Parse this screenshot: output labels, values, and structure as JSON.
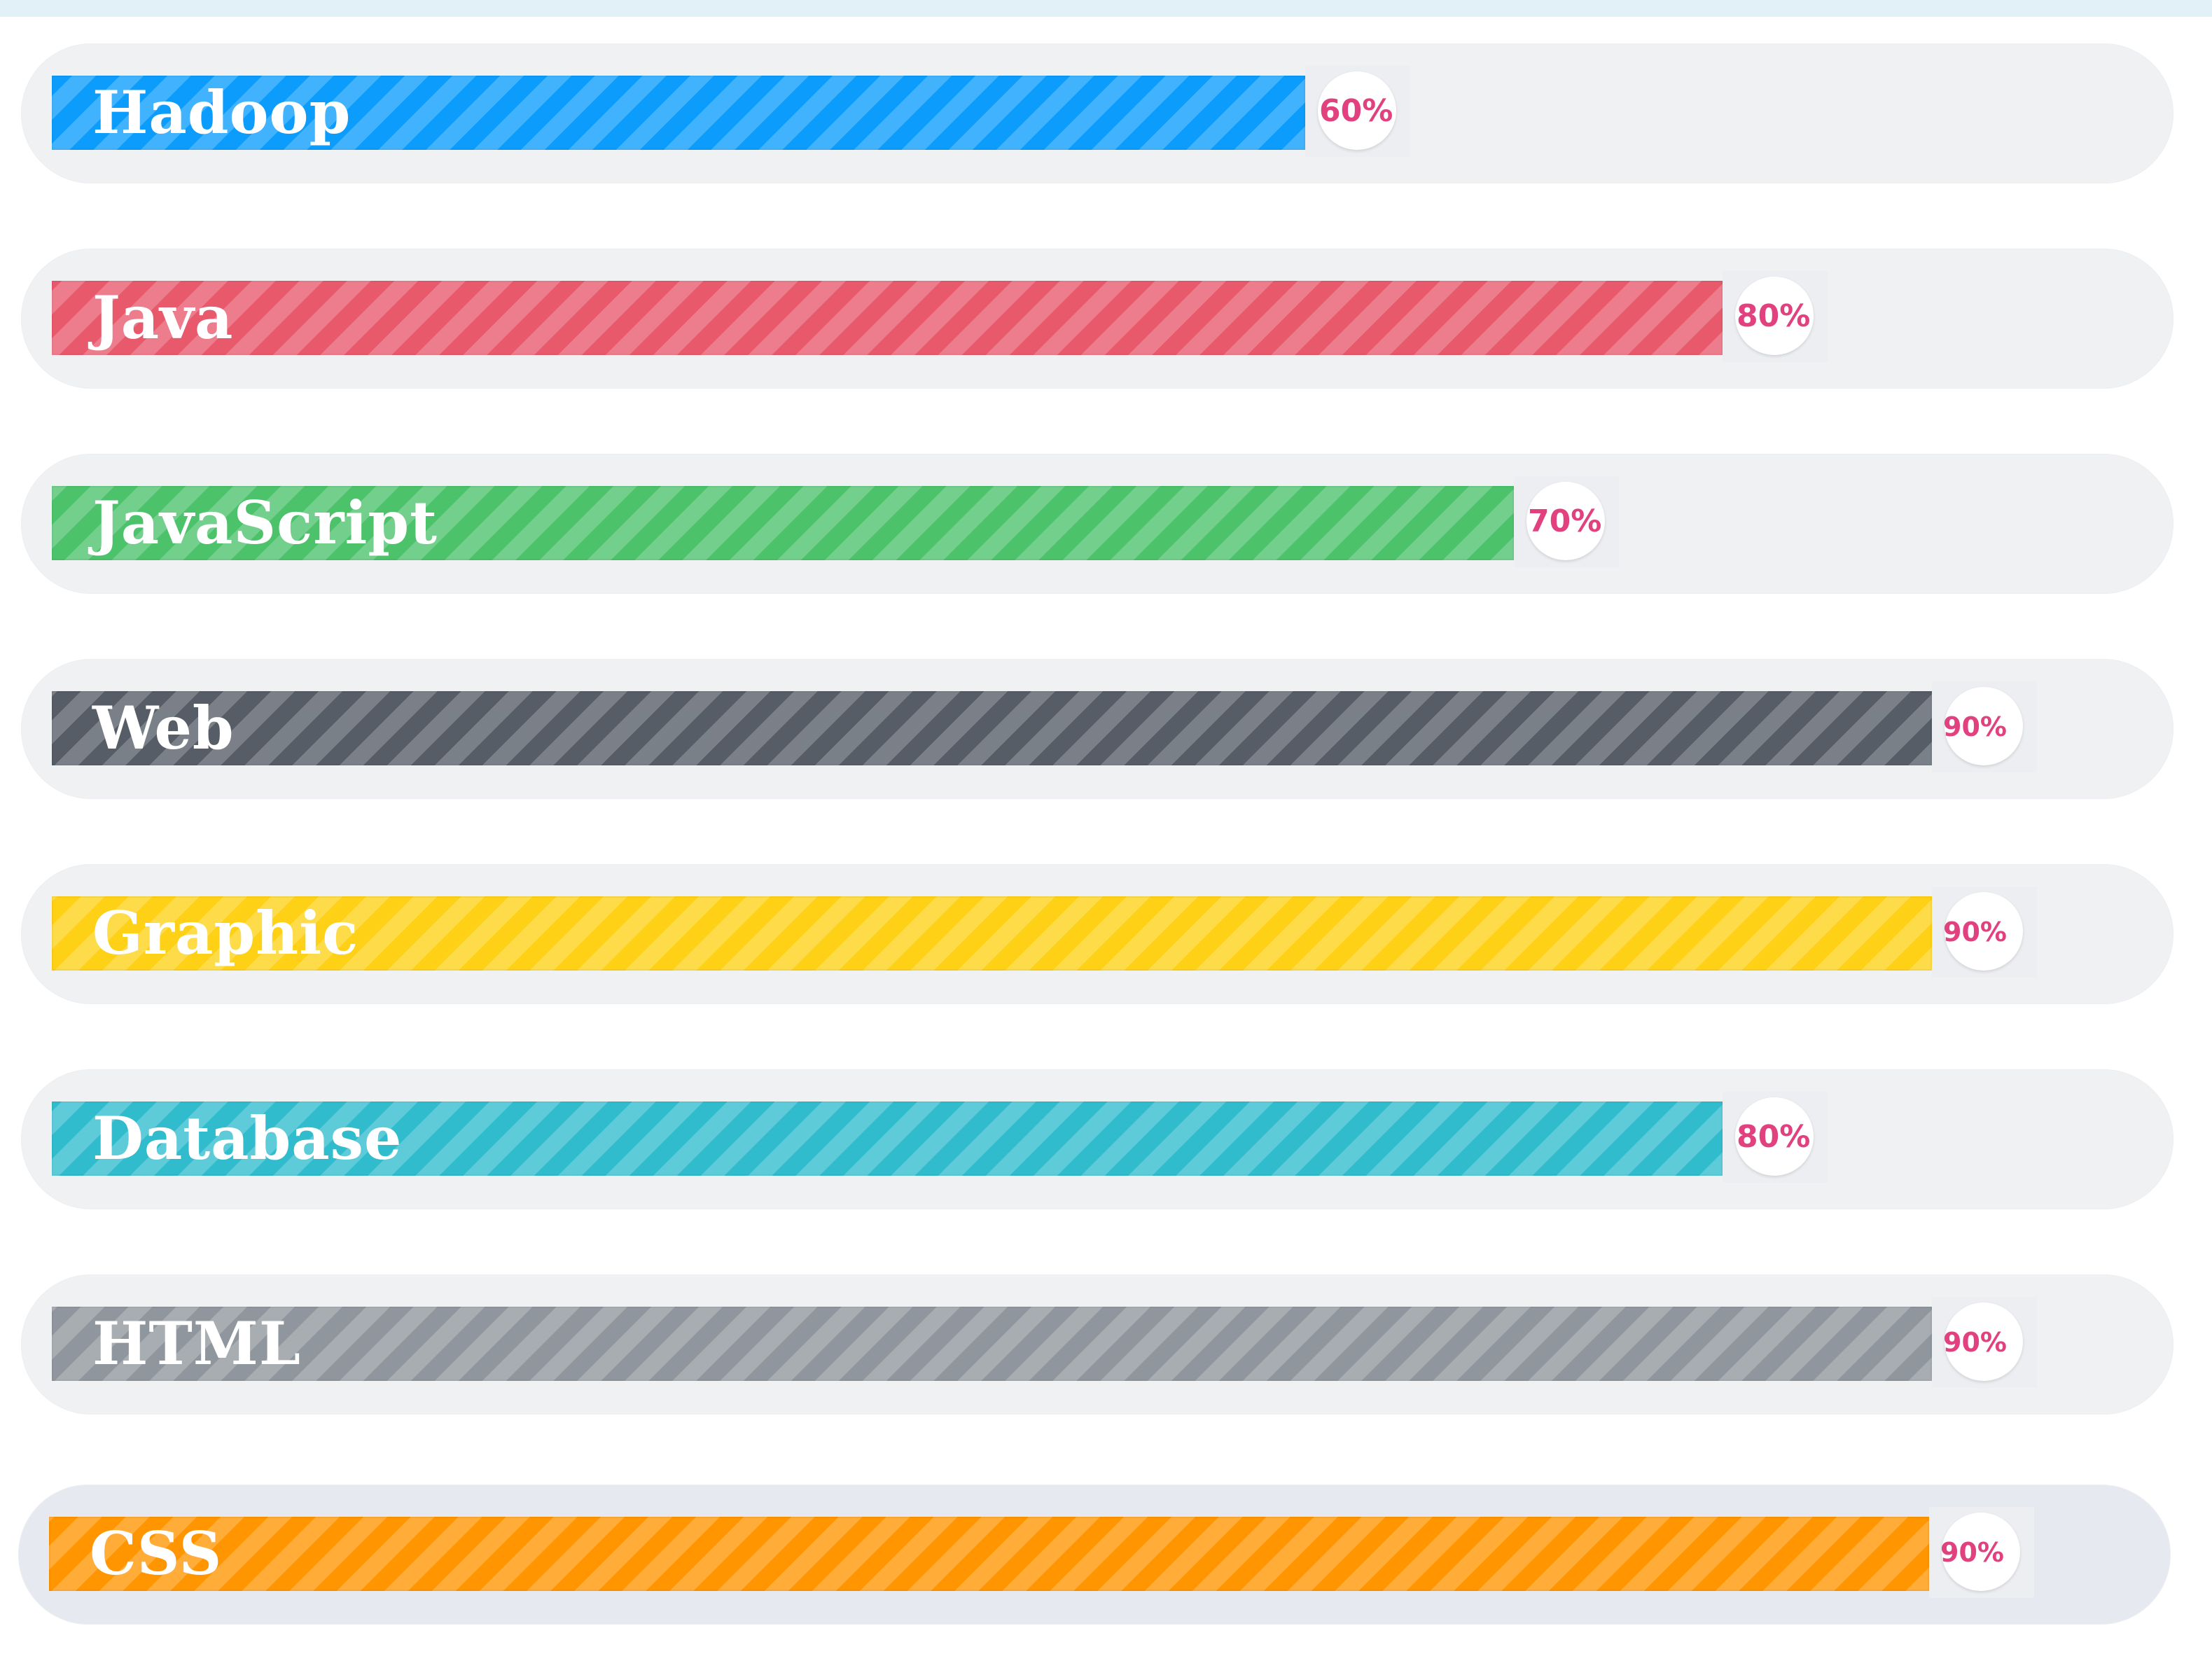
{
  "colors": {
    "percent_text": "#e1417f",
    "row_background": "#f0f1f3"
  },
  "skills": [
    {
      "label": "Hadoop",
      "percent_text": "60%",
      "level": 0.6,
      "color": "#0c9dfc"
    },
    {
      "label": "Java",
      "percent_text": "80%",
      "level": 0.8,
      "color": "#e8596c"
    },
    {
      "label": "JavaScript",
      "percent_text": "70%",
      "level": 0.7,
      "color": "#4cc26b"
    },
    {
      "label": "Web",
      "percent_text": "90%",
      "level": 0.9,
      "color": "#565d66"
    },
    {
      "label": "Graphic",
      "percent_text": "90%",
      "level": 0.9,
      "color": "#fed116"
    },
    {
      "label": "Database",
      "percent_text": "80%",
      "level": 0.8,
      "color": "#31bcce"
    },
    {
      "label": "HTML",
      "percent_text": "90%",
      "level": 0.9,
      "color": "#8f969d"
    },
    {
      "label": "CSS",
      "percent_text": "90%",
      "level": 0.9,
      "color": "#ff9500"
    }
  ]
}
